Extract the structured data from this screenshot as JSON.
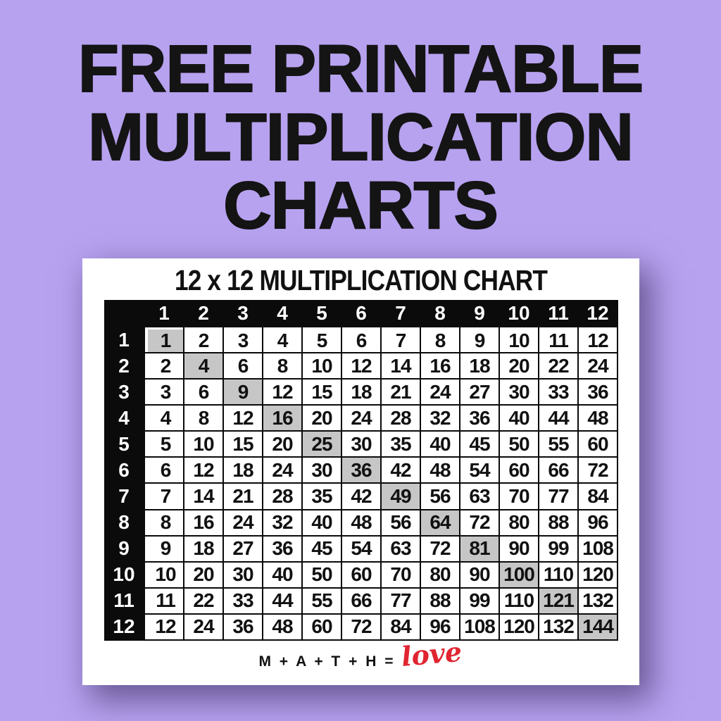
{
  "page": {
    "title_lines": [
      "FREE PRINTABLE",
      "MULTIPLICATION",
      "CHARTS"
    ]
  },
  "card": {
    "footer": {
      "equation": "M + A + T + H =",
      "script_word": "love"
    }
  },
  "chart_data": {
    "type": "table",
    "title": "12 x 12 MULTIPLICATION CHART",
    "col_headers": [
      "1",
      "2",
      "3",
      "4",
      "5",
      "6",
      "7",
      "8",
      "9",
      "10",
      "11",
      "12"
    ],
    "row_headers": [
      "1",
      "2",
      "3",
      "4",
      "5",
      "6",
      "7",
      "8",
      "9",
      "10",
      "11",
      "12"
    ],
    "rows": [
      [
        1,
        2,
        3,
        4,
        5,
        6,
        7,
        8,
        9,
        10,
        11,
        12
      ],
      [
        2,
        4,
        6,
        8,
        10,
        12,
        14,
        16,
        18,
        20,
        22,
        24
      ],
      [
        3,
        6,
        9,
        12,
        15,
        18,
        21,
        24,
        27,
        30,
        33,
        36
      ],
      [
        4,
        8,
        12,
        16,
        20,
        24,
        28,
        32,
        36,
        40,
        44,
        48
      ],
      [
        5,
        10,
        15,
        20,
        25,
        30,
        35,
        40,
        45,
        50,
        55,
        60
      ],
      [
        6,
        12,
        18,
        24,
        30,
        36,
        42,
        48,
        54,
        60,
        66,
        72
      ],
      [
        7,
        14,
        21,
        28,
        35,
        42,
        49,
        56,
        63,
        70,
        77,
        84
      ],
      [
        8,
        16,
        24,
        32,
        40,
        48,
        56,
        64,
        72,
        80,
        88,
        96
      ],
      [
        9,
        18,
        27,
        36,
        45,
        54,
        63,
        72,
        81,
        90,
        99,
        108
      ],
      [
        10,
        20,
        30,
        40,
        50,
        60,
        70,
        80,
        90,
        100,
        110,
        120
      ],
      [
        11,
        22,
        33,
        44,
        55,
        66,
        77,
        88,
        99,
        110,
        121,
        132
      ],
      [
        12,
        24,
        36,
        48,
        60,
        72,
        84,
        96,
        108,
        120,
        132,
        144
      ]
    ],
    "highlighted_cells": "main diagonal perfect squares: 1,4,9,16,25,36,49,64,81,100,121,144",
    "layout_hints": "black header row and header column with white digits; thin black gridlines; white gutter between headers and data cells"
  },
  "colors": {
    "background": "#b7a2f0",
    "title": "#141414",
    "card_bg": "#ffffff",
    "header_bg": "#0b0b0b",
    "header_text": "#ffffff",
    "cell_bg": "#ffffff",
    "cell_text": "#111111",
    "highlight_bg": "#c6c6c6",
    "script_red": "#e02531",
    "shadow": "rgba(30,15,60,0.5)"
  }
}
